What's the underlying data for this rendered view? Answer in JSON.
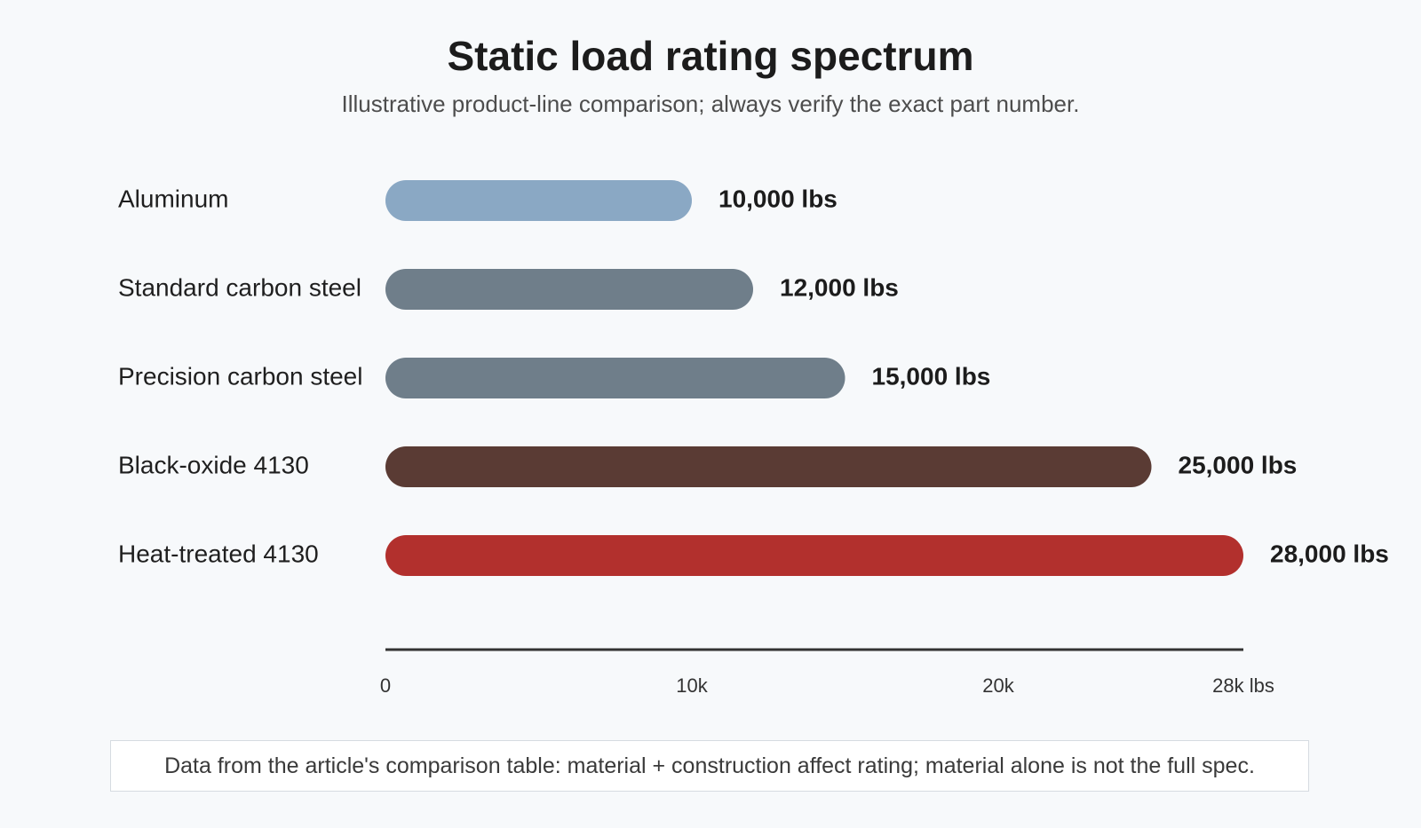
{
  "chart_data": {
    "type": "bar",
    "orientation": "horizontal",
    "title": "Static load rating spectrum",
    "subtitle": "Illustrative product-line comparison; always verify the exact part number.",
    "categories": [
      "Aluminum",
      "Standard carbon steel",
      "Precision carbon steel",
      "Black-oxide 4130",
      "Heat-treated 4130"
    ],
    "values": [
      10000,
      12000,
      15000,
      25000,
      28000
    ],
    "value_labels": [
      "10,000 lbs",
      "12,000 lbs",
      "15,000 lbs",
      "25,000 lbs",
      "28,000 lbs"
    ],
    "bar_colors": [
      "#8aa8c4",
      "#6f7e8a",
      "#6f7e8a",
      "#5a3b34",
      "#b2302d"
    ],
    "xlim": [
      0,
      28000
    ],
    "ticks": [
      {
        "value": 0,
        "label": "0"
      },
      {
        "value": 10000,
        "label": "10k"
      },
      {
        "value": 20000,
        "label": "20k"
      },
      {
        "value": 28000,
        "label": "28k lbs"
      }
    ],
    "grid": false,
    "legend": "none",
    "axis_color": "#333333"
  },
  "footnote": "Data from the article's comparison table: material + construction affect rating; material alone is not the full spec."
}
